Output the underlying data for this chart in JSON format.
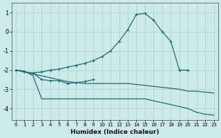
{
  "xlabel": "Humidex (Indice chaleur)",
  "bg_color": "#cceaea",
  "grid_color": "#b0cccc",
  "line_color": "#1a6b6b",
  "xlim": [
    -0.5,
    23.5
  ],
  "ylim": [
    -4.6,
    1.5
  ],
  "yticks": [
    -4,
    -3,
    -2,
    -1,
    0,
    1
  ],
  "xticks": [
    0,
    1,
    2,
    3,
    4,
    5,
    6,
    7,
    8,
    9,
    10,
    11,
    12,
    13,
    14,
    15,
    16,
    17,
    18,
    19,
    20,
    21,
    22,
    23
  ],
  "series1_x": [
    0,
    1,
    2,
    3,
    4,
    5,
    6,
    7,
    8,
    9,
    10,
    11,
    12,
    13,
    14,
    15,
    16,
    17,
    18,
    19,
    20
  ],
  "series1_y": [
    -2.0,
    -2.1,
    -2.15,
    -2.1,
    -2.0,
    -1.95,
    -1.85,
    -1.75,
    -1.65,
    -1.5,
    -1.3,
    -1.0,
    -0.5,
    0.1,
    0.9,
    0.95,
    0.6,
    0.0,
    -0.5,
    -2.0,
    -2.0
  ],
  "series2_x": [
    0,
    1,
    2,
    3,
    4,
    5,
    6,
    7,
    8,
    9,
    10,
    11,
    12,
    13,
    14,
    15,
    16,
    17,
    18,
    19,
    20,
    21,
    22,
    23
  ],
  "series2_y": [
    -2.0,
    -2.05,
    -2.3,
    -3.5,
    -3.5,
    -3.5,
    -3.5,
    -3.5,
    -3.5,
    -3.5,
    -3.5,
    -3.5,
    -3.5,
    -3.5,
    -3.5,
    -3.5,
    -3.6,
    -3.7,
    -3.8,
    -3.9,
    -4.0,
    -4.2,
    -4.3,
    -4.35
  ],
  "series3_x": [
    2,
    3,
    4,
    5,
    6,
    7,
    8,
    9
  ],
  "series3_y": [
    -2.15,
    -2.5,
    -2.55,
    -2.55,
    -2.7,
    -2.65,
    -2.6,
    -2.5
  ],
  "series4_x": [
    0,
    1,
    2,
    3,
    4,
    5,
    6,
    7,
    8,
    9,
    10,
    11,
    12,
    13,
    14,
    15,
    16,
    17,
    18,
    19,
    20,
    21,
    22,
    23
  ],
  "series4_y": [
    -2.0,
    -2.1,
    -2.2,
    -2.3,
    -2.4,
    -2.5,
    -2.6,
    -2.65,
    -2.7,
    -2.7,
    -2.7,
    -2.7,
    -2.7,
    -2.7,
    -2.75,
    -2.8,
    -2.85,
    -2.9,
    -2.95,
    -3.0,
    -3.1,
    -3.1,
    -3.15,
    -3.2
  ]
}
